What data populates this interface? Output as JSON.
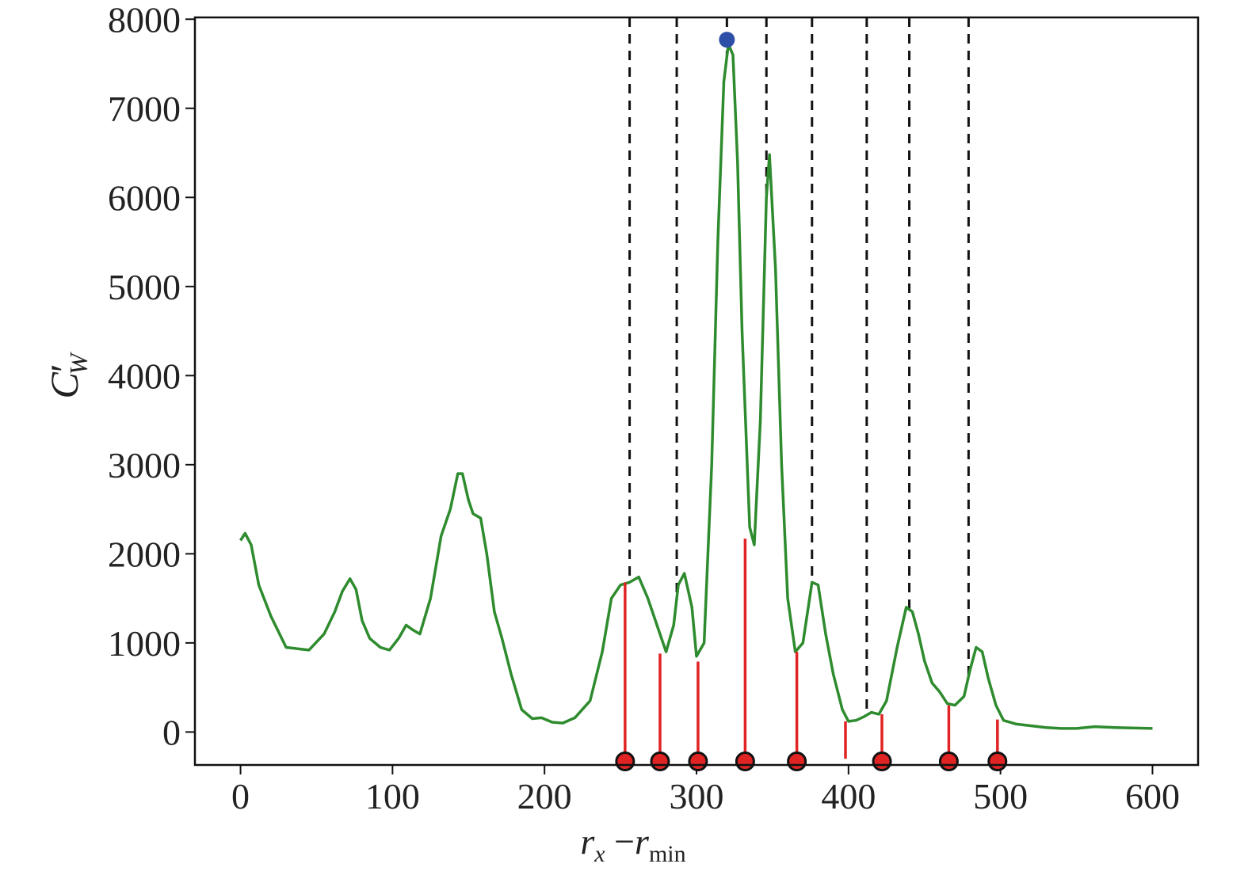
{
  "chart_data": {
    "type": "line",
    "xlim": [
      -30,
      630
    ],
    "ylim": [
      -370,
      8020
    ],
    "x_ticks": [
      0,
      100,
      200,
      300,
      400,
      500,
      600
    ],
    "y_ticks": [
      0,
      1000,
      2000,
      3000,
      4000,
      5000,
      6000,
      7000,
      8000
    ],
    "x_tick_labels": [
      "0",
      "100",
      "200",
      "300",
      "400",
      "500",
      "600"
    ],
    "y_tick_labels": [
      "0",
      "1000",
      "2000",
      "3000",
      "4000",
      "5000",
      "6000",
      "7000",
      "8000"
    ],
    "xlabel": {
      "base": "r",
      "sub": "x",
      "minus": " −",
      "base2": "r",
      "sub2": "min"
    },
    "ylabel": {
      "base": "C",
      "prime": "′",
      "sub": "W"
    },
    "grid": false,
    "series": [
      {
        "color": "#2e8b2e",
        "x": [
          0,
          3,
          7,
          12,
          20,
          30,
          45,
          55,
          62,
          67,
          72,
          76,
          80,
          85,
          92,
          98,
          104,
          109,
          113,
          118,
          125,
          132,
          138,
          143,
          146,
          150,
          153,
          158,
          162,
          167,
          172,
          178,
          185,
          192,
          198,
          205,
          212,
          220,
          230,
          238,
          244,
          250,
          256,
          262,
          268,
          275,
          280,
          285,
          288,
          292,
          297,
          300,
          305,
          310,
          314,
          318,
          321,
          324,
          327,
          330,
          335,
          338,
          342,
          346,
          348,
          352,
          356,
          360,
          365,
          370,
          376,
          380,
          385,
          390,
          396,
          400,
          405,
          410,
          415,
          420,
          425,
          432,
          438,
          442,
          446,
          450,
          455,
          460,
          465,
          470,
          476,
          480,
          484,
          488,
          492,
          497,
          502,
          510,
          520,
          530,
          540,
          550,
          562,
          575,
          600
        ],
        "values": [
          2150,
          2230,
          2100,
          1650,
          1300,
          950,
          920,
          1100,
          1350,
          1580,
          1720,
          1600,
          1250,
          1050,
          950,
          920,
          1050,
          1200,
          1150,
          1100,
          1500,
          2200,
          2500,
          2900,
          2900,
          2600,
          2450,
          2400,
          2000,
          1350,
          1050,
          650,
          250,
          150,
          160,
          110,
          100,
          160,
          350,
          900,
          1500,
          1650,
          1680,
          1740,
          1500,
          1150,
          900,
          1200,
          1650,
          1780,
          1400,
          850,
          1000,
          3000,
          5500,
          7300,
          7720,
          7600,
          6400,
          4500,
          2300,
          2100,
          3500,
          6000,
          6480,
          5200,
          3000,
          1500,
          900,
          1000,
          1680,
          1650,
          1100,
          650,
          250,
          120,
          130,
          170,
          220,
          200,
          350,
          950,
          1400,
          1350,
          1100,
          800,
          550,
          450,
          320,
          300,
          400,
          700,
          950,
          900,
          600,
          300,
          130,
          90,
          70,
          50,
          40,
          40,
          60,
          50,
          40
        ]
      }
    ],
    "peak_marker": {
      "x": 320,
      "y": 7770,
      "color": "#2e4fa8"
    },
    "dashed_lines": {
      "color": "#111111",
      "x": [
        256,
        287,
        320,
        346,
        376,
        412,
        440,
        479
      ]
    },
    "red_markers": {
      "color": "#e02424",
      "baseline": -330,
      "x": [
        253,
        276,
        301,
        332,
        366,
        422,
        466,
        498
      ],
      "top": [
        1680,
        880,
        790,
        2170,
        900,
        200,
        300,
        140
      ]
    },
    "red_stem_extra": {
      "x": 398,
      "top": 120,
      "bottom": -300
    }
  }
}
